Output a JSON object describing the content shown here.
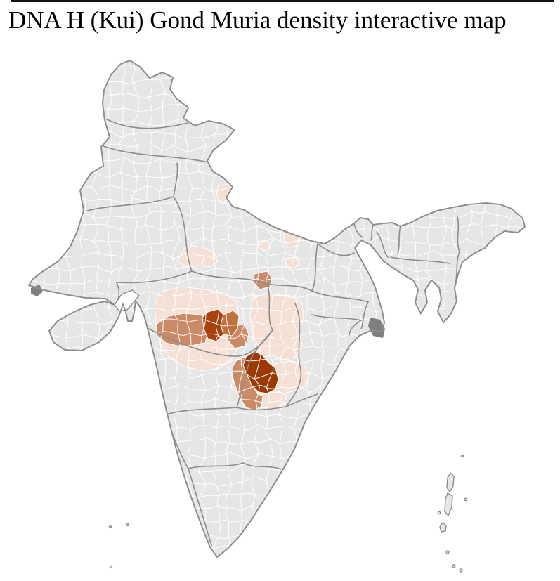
{
  "title": "DNA H (Kui) Gond Muria density interactive map",
  "map": {
    "palette": {
      "background": "#ffffff",
      "base": "#e6e6e6",
      "districtline": "#ffffff",
      "stateline": "#8d8d8d",
      "marsh": "#7f7f7f"
    },
    "density_scale": [
      {
        "level": "none",
        "color": "#e6e6e6"
      },
      {
        "level": "low",
        "color": "#f4e0d4"
      },
      {
        "level": "medium",
        "color": "#cb8a66"
      },
      {
        "level": "high",
        "color": "#c1703f"
      },
      {
        "level": "very-high",
        "color": "#a8430e"
      },
      {
        "level": "max",
        "color": "#9c3a06"
      }
    ]
  }
}
